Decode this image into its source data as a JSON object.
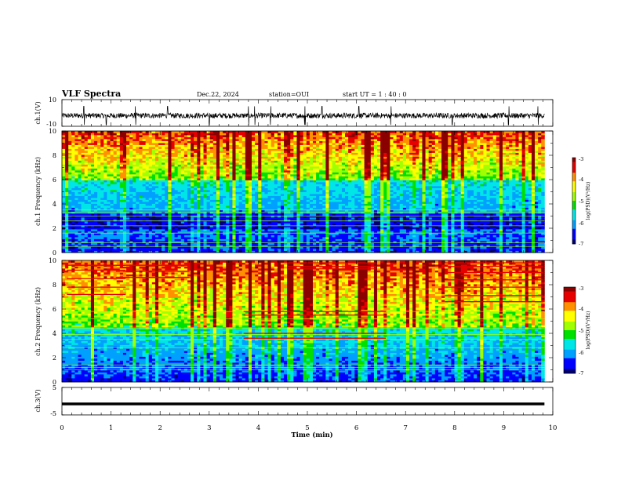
{
  "header": {
    "title": "VLF Spectra",
    "date": "Dec.22, 2024",
    "station": "station=OUI",
    "start_ut": "start  UT =   1 : 40 : 0"
  },
  "x_axis": {
    "label": "Time  (min)",
    "range": [
      0,
      10
    ],
    "ticks": [
      "0",
      "1",
      "2",
      "3",
      "4",
      "5",
      "6",
      "7",
      "8",
      "9",
      "10"
    ]
  },
  "colors": {
    "cmap": [
      "#00006e",
      "#0000ff",
      "#00a0ff",
      "#00e6e6",
      "#00e000",
      "#a0ff00",
      "#ffff00",
      "#ff9000",
      "#e60000",
      "#8b0000"
    ]
  },
  "chart_data": [
    {
      "type": "line",
      "name": "ch1-waveform",
      "ylabel": "ch.1(V)",
      "ylim": [
        -10,
        10
      ],
      "yticks": [
        "10",
        "-10"
      ],
      "level": -2,
      "baseline_range": [
        -4,
        0
      ],
      "spike_minutes": [
        0.45,
        0.9,
        1.5,
        2.15,
        3.0,
        3.8,
        3.93,
        4.25,
        4.95,
        5.3,
        6.05,
        6.7,
        7.95,
        9.1,
        9.7
      ]
    },
    {
      "type": "heatmap",
      "name": "ch1-spectrogram",
      "ylabel": "ch.1  Frequency  (kHz)",
      "ylim": [
        0,
        10
      ],
      "yticks": [
        "0",
        "2",
        "4",
        "6",
        "8",
        "10"
      ],
      "colorbar": {
        "label": "log(PSD)(V²/Hz)",
        "range": [
          -7,
          -3
        ],
        "ticks": [
          "-3",
          "-4",
          "-5",
          "-6",
          "-7"
        ]
      },
      "noise_floor_khz": 6.0,
      "dark_band_khz": [
        2.0,
        3.2
      ],
      "persistent_lines_khz": [
        0.5,
        0.8,
        1.6,
        2.2,
        2.6,
        3.0,
        3.3,
        3.5
      ]
    },
    {
      "type": "heatmap",
      "name": "ch2-spectrogram",
      "ylabel": "ch.2  Frequency  (kHz)",
      "ylim": [
        0,
        10
      ],
      "yticks": [
        "0",
        "2",
        "4",
        "6",
        "8",
        "10"
      ],
      "colorbar": {
        "label": "log(PSD)(V²/Hz)",
        "range": [
          -7,
          -3
        ],
        "ticks": [
          "-3",
          "-4",
          "-5",
          "-6",
          "-7"
        ]
      },
      "noise_floor_khz": 4.5,
      "persistent_lines_khz": [
        1.0,
        1.2,
        1.4,
        2.8,
        3.5,
        3.9,
        4.4,
        5.2,
        5.8
      ],
      "narrowband_segments": [
        {
          "start_min": 0.1,
          "end_min": 1.3,
          "freqs_khz": [
            7.2,
            7.8,
            8.5,
            9.2,
            9.6
          ]
        },
        {
          "start_min": 1.1,
          "end_min": 2.6,
          "freqs_khz": [
            8.6,
            9.1,
            9.6
          ]
        },
        {
          "start_min": 3.7,
          "end_min": 6.6,
          "freqs_khz": [
            3.6,
            4.0,
            5.5,
            5.8
          ]
        },
        {
          "start_min": 4.6,
          "end_min": 6.4,
          "freqs_khz": [
            9.3,
            9.5,
            9.8
          ]
        },
        {
          "start_min": 7.8,
          "end_min": 9.8,
          "freqs_khz": [
            6.6,
            7.1,
            7.8,
            8.4,
            9.0,
            9.5,
            9.8
          ]
        }
      ]
    },
    {
      "type": "line",
      "name": "ch3-waveform",
      "ylabel": "ch.3(V)",
      "ylim": [
        -5,
        5
      ],
      "yticks": [
        "5",
        "-5"
      ],
      "level": -1
    }
  ]
}
